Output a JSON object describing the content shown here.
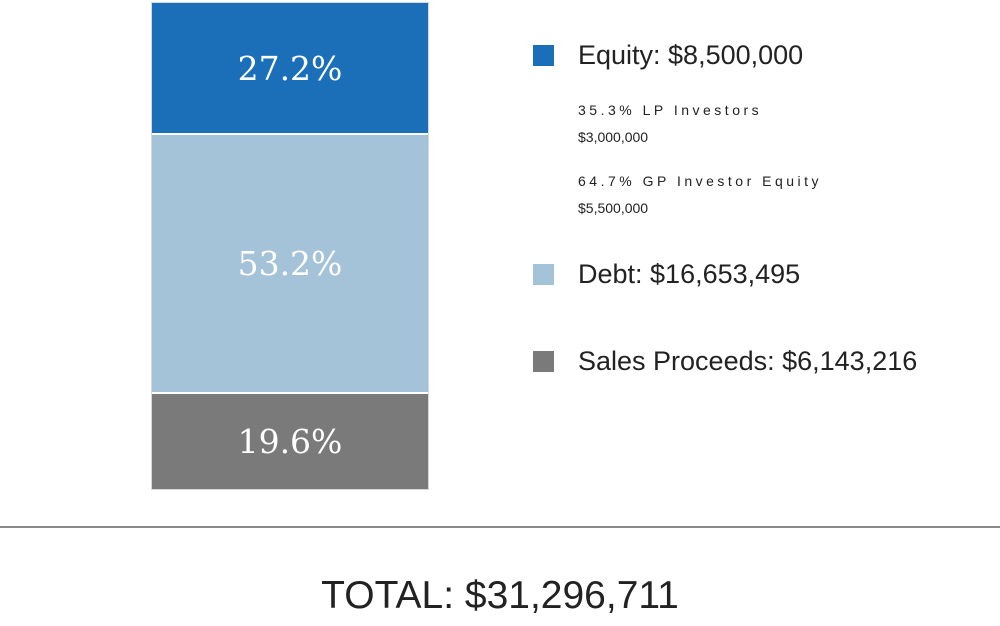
{
  "chart_data": {
    "type": "bar",
    "stacked": true,
    "segments": [
      {
        "name": "Equity",
        "percent": 27.2,
        "label": "27.2%",
        "color": "#1a6fb8"
      },
      {
        "name": "Debt",
        "percent": 53.2,
        "label": "53.2%",
        "color": "#a4c2d8"
      },
      {
        "name": "Sales Proceeds",
        "percent": 19.6,
        "label": "19.6%",
        "color": "#7a7a7a"
      }
    ]
  },
  "legend": {
    "equity": {
      "label": "Equity: $8,500,000",
      "color": "#1a6fb8"
    },
    "equity_breakdown": [
      {
        "pct_label": "35.3% LP Investors",
        "amount": "$3,000,000"
      },
      {
        "pct_label": "64.7% GP Investor Equity",
        "amount": "$5,500,000"
      }
    ],
    "debt": {
      "label": "Debt: $16,653,495",
      "color": "#a4c2d8"
    },
    "sales": {
      "label": "Sales Proceeds: $6,143,216",
      "color": "#7a7a7a"
    }
  },
  "total": "TOTAL: $31,296,711"
}
